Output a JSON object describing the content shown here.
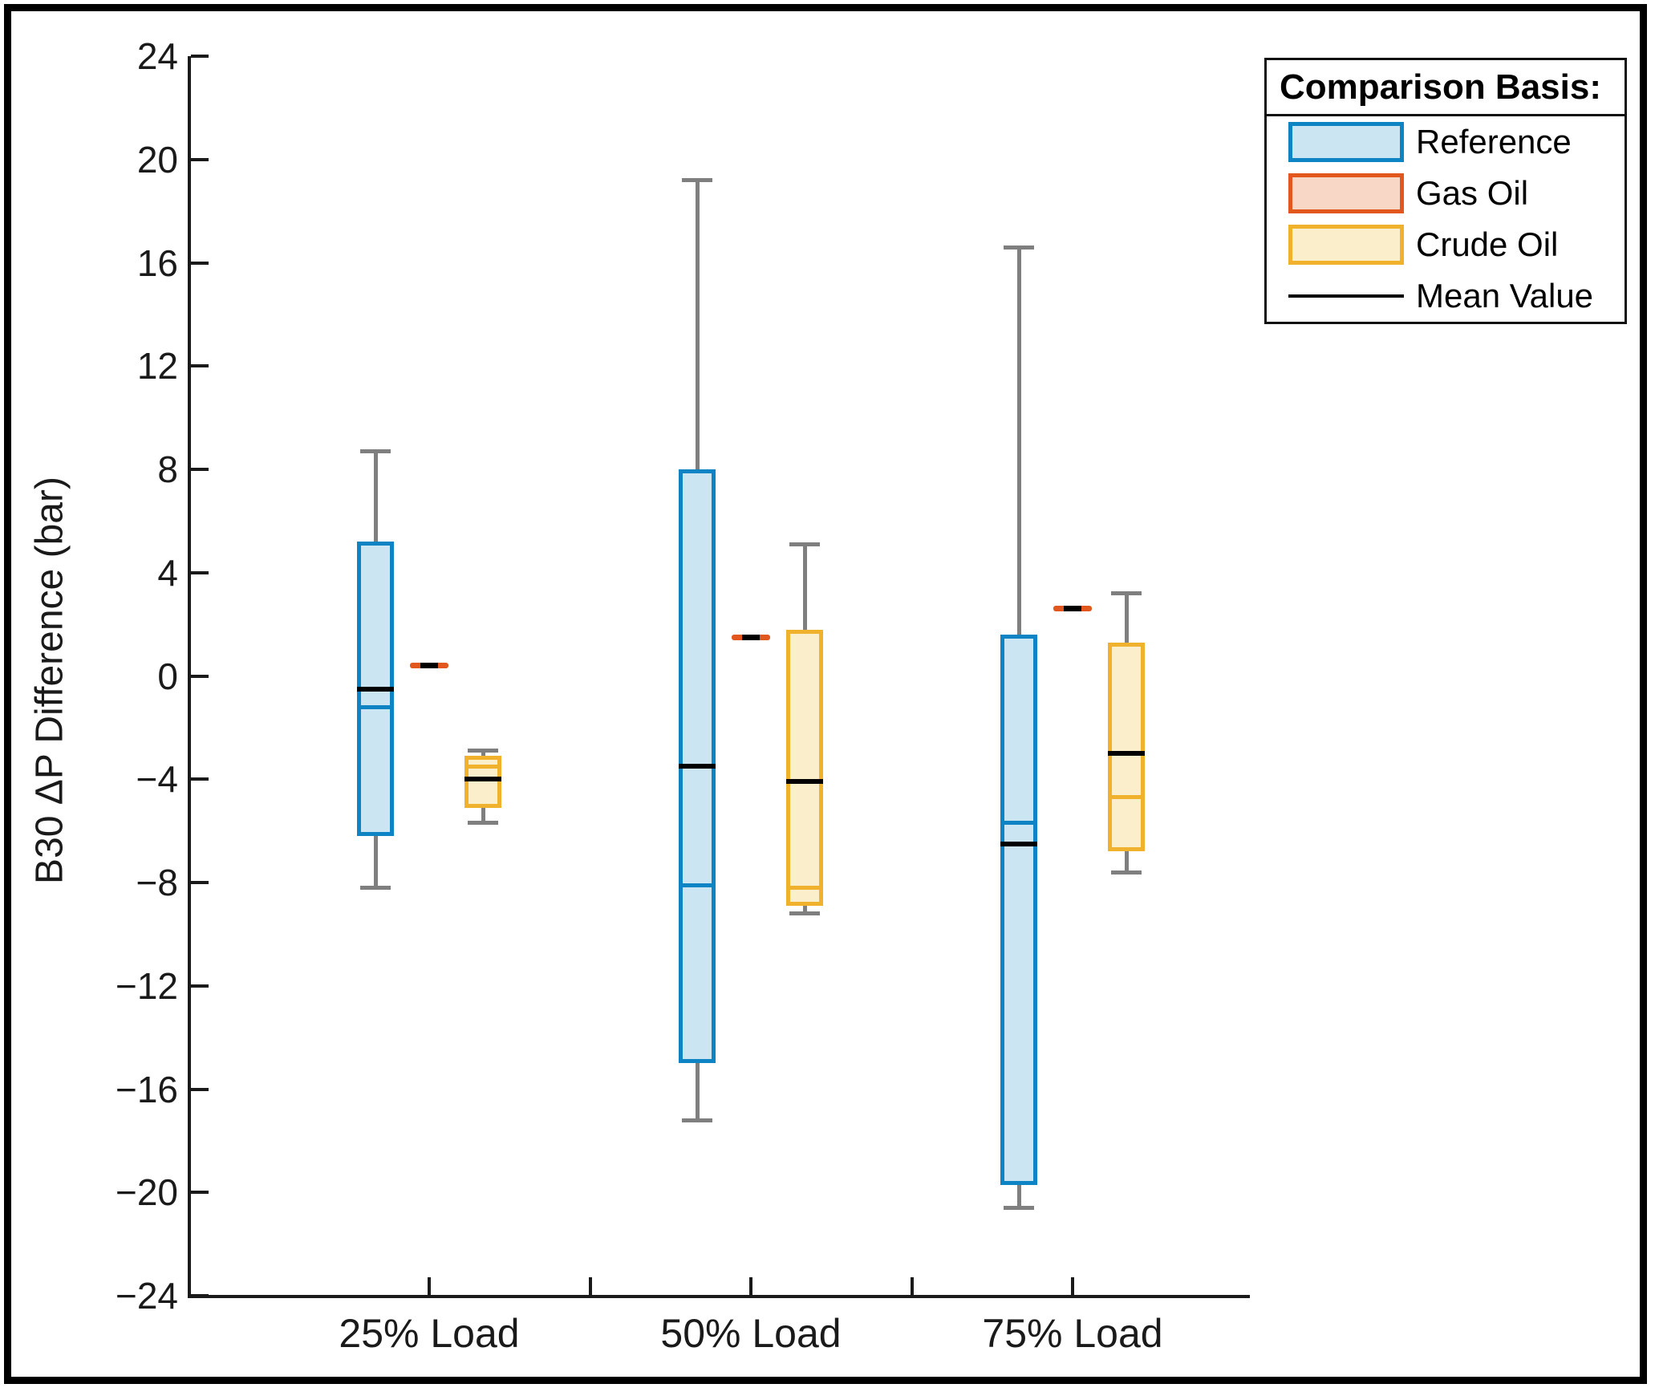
{
  "y_axis": {
    "label": "B30 ΔP Difference (bar)",
    "ticks": [
      24,
      20,
      16,
      12,
      8,
      4,
      0,
      -4,
      -8,
      -12,
      -16,
      -20,
      -24
    ]
  },
  "x_axis": {
    "labels": [
      "25% Load",
      "50% Load",
      "75% Load"
    ]
  },
  "legend": {
    "title": "Comparison Basis:",
    "items": [
      {
        "label": "Reference",
        "swatch": "box",
        "fill": "#cbe5f3",
        "border": "#0e84c5"
      },
      {
        "label": "Gas Oil",
        "swatch": "box",
        "fill": "#f8d7c7",
        "border": "#e2571e"
      },
      {
        "label": "Crude Oil",
        "swatch": "box",
        "fill": "#fbeecb",
        "border": "#f0b22c"
      },
      {
        "label": "Mean Value",
        "swatch": "line",
        "color": "#000000"
      }
    ]
  },
  "chart_data": {
    "type": "boxplot",
    "title": "",
    "xlabel": "",
    "ylabel": "B30 ΔP Difference (bar)",
    "ylim": [
      -24,
      24
    ],
    "y_tick_step": 4,
    "grid": false,
    "legend_position": "outside-top-right",
    "categories": [
      "25% Load",
      "50% Load",
      "75% Load"
    ],
    "mean_marker": "black horizontal line inside each box",
    "series": [
      {
        "name": "Reference",
        "fill": "#cbe5f3",
        "border": "#0e84c5",
        "boxes": [
          {
            "category": "25% Load",
            "whisker_low": -8.2,
            "q1": -6.2,
            "median": -1.2,
            "mean": -0.5,
            "q3": 5.2,
            "whisker_high": 8.7
          },
          {
            "category": "50% Load",
            "whisker_low": -17.2,
            "q1": -15.0,
            "median": -8.1,
            "mean": -3.5,
            "q3": 8.0,
            "whisker_high": 19.2
          },
          {
            "category": "75% Load",
            "whisker_low": -20.6,
            "q1": -19.7,
            "median": -5.7,
            "mean": -6.5,
            "q3": 1.6,
            "whisker_high": 16.6
          }
        ]
      },
      {
        "name": "Gas Oil",
        "fill": "#f8d7c7",
        "border": "#e2571e",
        "points": [
          {
            "category": "25% Load",
            "value": 0.4,
            "mean": 0.4
          },
          {
            "category": "50% Load",
            "value": 1.5,
            "mean": 1.5
          },
          {
            "category": "75% Load",
            "value": 2.6,
            "mean": 2.6
          }
        ]
      },
      {
        "name": "Crude Oil",
        "fill": "#fbeecb",
        "border": "#f0b22c",
        "boxes": [
          {
            "category": "25% Load",
            "whisker_low": -5.7,
            "q1": -5.1,
            "median": -3.5,
            "mean": -4.0,
            "q3": -3.1,
            "whisker_high": -2.9
          },
          {
            "category": "50% Load",
            "whisker_low": -9.2,
            "q1": -8.9,
            "median": -8.2,
            "mean": -4.1,
            "q3": 1.8,
            "whisker_high": 5.1
          },
          {
            "category": "75% Load",
            "whisker_low": -7.6,
            "q1": -6.8,
            "median": -4.7,
            "mean": -3.0,
            "q3": 1.3,
            "whisker_high": 3.2
          }
        ]
      }
    ]
  },
  "colors": {
    "whisker": "#7f7f7f",
    "axis": "#1a1a1a",
    "mean_line": "#000000",
    "background": "#ffffff",
    "figure_border": "#000000"
  }
}
